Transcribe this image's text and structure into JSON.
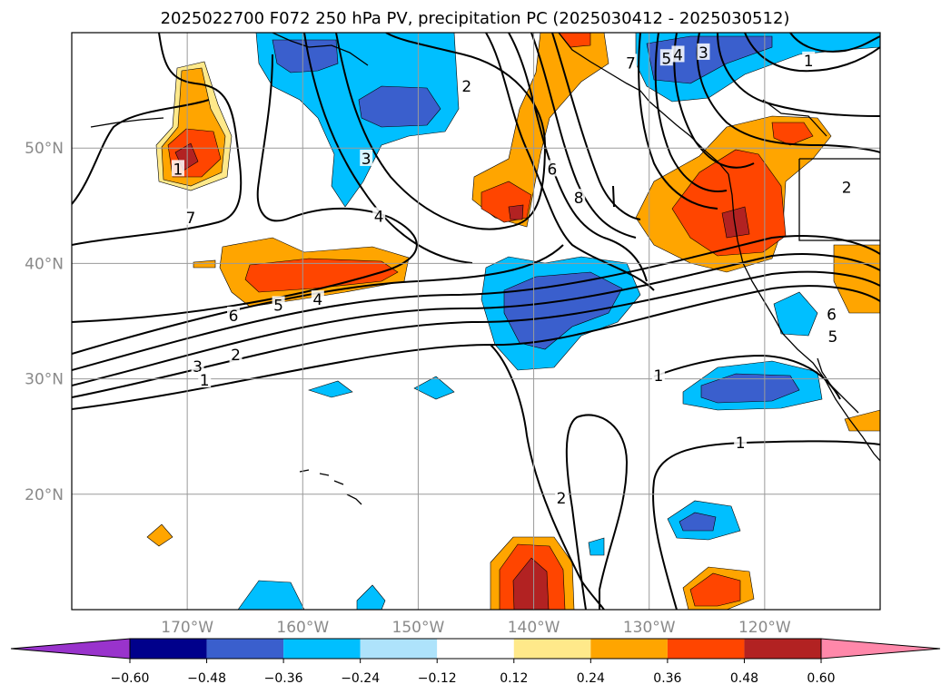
{
  "chart_data": {
    "type": "heatmap",
    "title": "2025022700 F072 250 hPa PV, precipitation PC (2025030412 - 2025030512)",
    "lon_range": [
      -180,
      -110
    ],
    "lat_range": [
      10,
      60
    ],
    "x_ticks": [
      {
        "lon": -170,
        "label": "170°W"
      },
      {
        "lon": -160,
        "label": "160°W"
      },
      {
        "lon": -150,
        "label": "150°W"
      },
      {
        "lon": -140,
        "label": "140°W"
      },
      {
        "lon": -130,
        "label": "130°W"
      },
      {
        "lon": -120,
        "label": "120°W"
      }
    ],
    "y_ticks": [
      {
        "lat": 50,
        "label": "50°N"
      },
      {
        "lat": 40,
        "label": "40°N"
      },
      {
        "lat": 30,
        "label": "30°N"
      },
      {
        "lat": 20,
        "label": "20°N"
      }
    ],
    "grid": true,
    "colorbar": {
      "orientation": "horizontal",
      "extend": "both",
      "levels": [
        "−0.60",
        "−0.48",
        "−0.36",
        "−0.24",
        "−0.12",
        "0.12",
        "0.24",
        "0.36",
        "0.48",
        "0.60"
      ],
      "colors": [
        "#9933cc",
        "#00008b",
        "#3a5fcd",
        "#00bfff",
        "#aee3fb",
        "#ffffff",
        "#ffe98a",
        "#ffa500",
        "#ff4500",
        "#b22222",
        "#ff88aa"
      ]
    },
    "contour_labels": [
      {
        "text": "1",
        "lon": -170.8,
        "lat": 48.1
      },
      {
        "text": "7",
        "lon": -169.7,
        "lat": 43.9
      },
      {
        "text": "3",
        "lon": -154.5,
        "lat": 49.0
      },
      {
        "text": "4",
        "lon": -153.4,
        "lat": 44.0
      },
      {
        "text": "2",
        "lon": -145.8,
        "lat": 55.3
      },
      {
        "text": "6",
        "lon": -138.4,
        "lat": 48.1
      },
      {
        "text": "8",
        "lon": -136.1,
        "lat": 45.6
      },
      {
        "text": "6",
        "lon": -166.0,
        "lat": 35.4
      },
      {
        "text": "5",
        "lon": -162.1,
        "lat": 36.3
      },
      {
        "text": "4",
        "lon": -158.7,
        "lat": 36.8
      },
      {
        "text": "3",
        "lon": -169.1,
        "lat": 31.0
      },
      {
        "text": "2",
        "lon": -165.8,
        "lat": 32.0
      },
      {
        "text": "1",
        "lon": -168.5,
        "lat": 29.8
      },
      {
        "text": "7",
        "lon": -131.6,
        "lat": 57.3
      },
      {
        "text": "5",
        "lon": -128.5,
        "lat": 57.7
      },
      {
        "text": "4",
        "lon": -127.5,
        "lat": 58.0
      },
      {
        "text": "3",
        "lon": -125.3,
        "lat": 58.2
      },
      {
        "text": "1",
        "lon": -116.2,
        "lat": 57.5
      },
      {
        "text": "2",
        "lon": -112.9,
        "lat": 46.5
      },
      {
        "text": "1",
        "lon": -129.2,
        "lat": 30.2
      },
      {
        "text": "6",
        "lon": -114.2,
        "lat": 35.5
      },
      {
        "text": "5",
        "lon": -114.1,
        "lat": 33.6
      },
      {
        "text": "1",
        "lon": -122.1,
        "lat": 24.4
      },
      {
        "text": "2",
        "lon": -137.6,
        "lat": 19.6
      }
    ]
  }
}
